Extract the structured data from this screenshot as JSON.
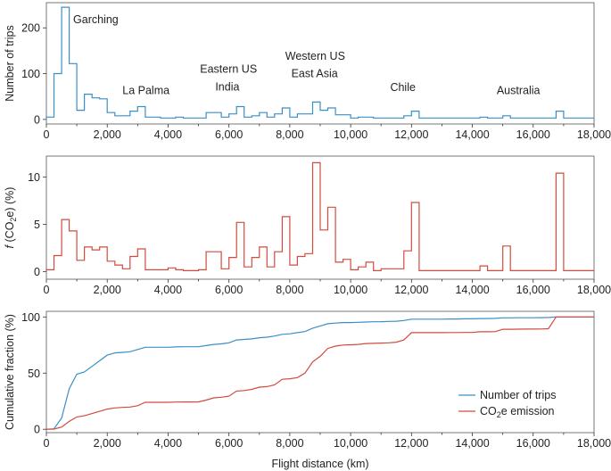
{
  "chart_data": [
    {
      "type": "line",
      "step": true,
      "ylabel": "Number of trips",
      "xlim": [
        0,
        18000
      ],
      "ylim": [
        -10,
        255
      ],
      "yticks": [
        0,
        100,
        200
      ],
      "xticks": [
        "0",
        "2,000",
        "4,000",
        "6,000",
        "8,000",
        "10,000",
        "12,000",
        "14,000",
        "16,000",
        "18,000"
      ],
      "color": "#3b8fc7",
      "annotations": [
        {
          "text": "Garching",
          "x": 880,
          "y": 210
        },
        {
          "text": "La Palma",
          "x": 2500,
          "y": 55
        },
        {
          "text": "Eastern US",
          "x": 5050,
          "y": 102
        },
        {
          "text": "India",
          "x": 5550,
          "y": 63
        },
        {
          "text": "Western US",
          "x": 7850,
          "y": 130
        },
        {
          "text": "East Asia",
          "x": 8050,
          "y": 92
        },
        {
          "text": "Chile",
          "x": 11300,
          "y": 62
        },
        {
          "text": "Australia",
          "x": 14800,
          "y": 55
        }
      ],
      "edges": [
        0,
        250,
        500,
        750,
        1000,
        1250,
        1500,
        1750,
        2000,
        2250,
        2500,
        2750,
        3000,
        3250,
        3500,
        3750,
        4000,
        4250,
        4500,
        4750,
        5000,
        5250,
        5500,
        5750,
        6000,
        6250,
        6500,
        6750,
        7000,
        7250,
        7500,
        7750,
        8000,
        8250,
        8500,
        8750,
        9000,
        9250,
        9500,
        9750,
        10000,
        10250,
        10500,
        10750,
        11000,
        11250,
        11500,
        11750,
        12000,
        12250,
        12500,
        12750,
        13000,
        13250,
        13500,
        13750,
        14000,
        14250,
        14500,
        14750,
        15000,
        15250,
        15500,
        15750,
        16000,
        16250,
        16500,
        16750,
        17000,
        17250,
        17500,
        17750,
        18000
      ],
      "values": [
        5,
        100,
        245,
        122,
        20,
        55,
        47,
        45,
        15,
        8,
        8,
        18,
        28,
        5,
        5,
        3,
        3,
        5,
        3,
        3,
        3,
        15,
        15,
        5,
        12,
        28,
        5,
        8,
        15,
        5,
        12,
        25,
        5,
        12,
        12,
        38,
        20,
        25,
        10,
        10,
        3,
        5,
        5,
        3,
        3,
        3,
        3,
        8,
        18,
        3,
        3,
        3,
        3,
        3,
        3,
        3,
        3,
        5,
        3,
        3,
        8,
        3,
        3,
        3,
        3,
        3,
        3,
        18,
        3,
        3,
        3,
        3
      ]
    },
    {
      "type": "line",
      "step": true,
      "ylabel_prefix": "f",
      "ylabel_main": " (CO",
      "ylabel_sub": "2",
      "ylabel_suffix": "e) (%)",
      "xlim": [
        0,
        18000
      ],
      "ylim": [
        -0.8,
        12.2
      ],
      "yticks": [
        0,
        5,
        10
      ],
      "xticks": [
        "0",
        "2,000",
        "4,000",
        "6,000",
        "8,000",
        "10,000",
        "12,000",
        "14,000",
        "16,000",
        "18,000"
      ],
      "color": "#d24b3e",
      "edges": [
        0,
        250,
        500,
        750,
        1000,
        1250,
        1500,
        1750,
        2000,
        2250,
        2500,
        2750,
        3000,
        3250,
        3500,
        3750,
        4000,
        4250,
        4500,
        4750,
        5000,
        5250,
        5500,
        5750,
        6000,
        6250,
        6500,
        6750,
        7000,
        7250,
        7500,
        7750,
        8000,
        8250,
        8500,
        8750,
        9000,
        9250,
        9500,
        9750,
        10000,
        10250,
        10500,
        10750,
        11000,
        11250,
        11500,
        11750,
        12000,
        12250,
        12500,
        12750,
        13000,
        13250,
        13500,
        13750,
        14000,
        14250,
        14500,
        14750,
        15000,
        15250,
        15500,
        15750,
        16000,
        16250,
        16500,
        16750,
        17000,
        17250,
        17500,
        17750,
        18000
      ],
      "values": [
        0.2,
        1.7,
        5.5,
        4.3,
        1.2,
        2.6,
        2.3,
        2.6,
        1.1,
        0.7,
        0.3,
        1.6,
        2.4,
        0.2,
        0.2,
        0.2,
        0.4,
        0.2,
        0.1,
        0.1,
        0.2,
        2.1,
        2.1,
        0.3,
        1.5,
        5.2,
        0.5,
        1.5,
        2.6,
        0.5,
        2.1,
        5.8,
        0.7,
        1.6,
        1.9,
        11.5,
        4.4,
        6.8,
        1.0,
        1.3,
        0.2,
        0.5,
        1.0,
        0.1,
        0.3,
        0.3,
        0.3,
        2.2,
        7.3,
        0.1,
        0.1,
        0.1,
        0.1,
        0.1,
        0.1,
        0.1,
        0.1,
        0.6,
        0.1,
        0.1,
        2.7,
        0.1,
        0.1,
        0.1,
        0.1,
        0.1,
        0.1,
        10.4,
        0.1,
        0.1,
        0.1,
        0.1
      ]
    },
    {
      "type": "line",
      "ylabel": "Cumulative fraction (%)",
      "xlabel": "Flight distance (km)",
      "xlim": [
        0,
        18000
      ],
      "ylim": [
        -3,
        105
      ],
      "yticks": [
        0,
        50,
        100
      ],
      "xticks": [
        "0",
        "2,000",
        "4,000",
        "6,000",
        "8,000",
        "10,000",
        "12,000",
        "14,000",
        "16,000",
        "18,000"
      ],
      "legend_position": "bottom-right",
      "series": [
        {
          "name": "Number of trips",
          "color": "#3b8fc7",
          "x": [
            0,
            250,
            500,
            750,
            1000,
            1250,
            1500,
            1750,
            2000,
            2250,
            2500,
            2750,
            3000,
            3250,
            3500,
            3750,
            4000,
            4250,
            4500,
            4750,
            5000,
            5250,
            5500,
            5750,
            6000,
            6250,
            6500,
            6750,
            7000,
            7250,
            7500,
            7750,
            8000,
            8250,
            8500,
            8750,
            9000,
            9250,
            9500,
            9750,
            10000,
            10250,
            10500,
            10750,
            11000,
            11250,
            11500,
            11750,
            12000,
            12250,
            12500,
            12750,
            13000,
            13250,
            13500,
            13750,
            14000,
            14250,
            14500,
            14750,
            15000,
            15250,
            15500,
            15750,
            16000,
            16250,
            16500,
            16750,
            17000,
            17250,
            17500,
            17750,
            18000
          ],
          "values": [
            0,
            0.4,
            10,
            36,
            49,
            51,
            56,
            61,
            66,
            68,
            68.5,
            69,
            71,
            73,
            73,
            73,
            73,
            73.3,
            73.5,
            73.5,
            73.5,
            74.5,
            75.5,
            76,
            77,
            79.5,
            80,
            80.5,
            81.5,
            82,
            83,
            84.5,
            85,
            86,
            87,
            90,
            92,
            94,
            94.5,
            95,
            95,
            95.2,
            95.5,
            95.7,
            95.8,
            96,
            96.2,
            96.8,
            98,
            98,
            98,
            98,
            98,
            98.2,
            98.2,
            98.3,
            98.3,
            98.6,
            98.6,
            98.7,
            99.2,
            99.2,
            99.3,
            99.3,
            99.3,
            99.4,
            99.5,
            100,
            100,
            100,
            100,
            100,
            100
          ]
        },
        {
          "name": "CO2e emission",
          "label_main": "CO",
          "label_sub": "2",
          "label_suffix": "e emission",
          "color": "#d24b3e",
          "x": [
            0,
            250,
            500,
            750,
            1000,
            1250,
            1500,
            1750,
            2000,
            2250,
            2500,
            2750,
            3000,
            3250,
            3500,
            3750,
            4000,
            4250,
            4500,
            4750,
            5000,
            5250,
            5500,
            5750,
            6000,
            6250,
            6500,
            6750,
            7000,
            7250,
            7500,
            7750,
            8000,
            8250,
            8500,
            8750,
            9000,
            9250,
            9500,
            9750,
            10000,
            10250,
            10500,
            10750,
            11000,
            11250,
            11500,
            11750,
            12000,
            12250,
            12500,
            12750,
            13000,
            13250,
            13500,
            13750,
            14000,
            14250,
            14500,
            14750,
            15000,
            15250,
            15500,
            15750,
            16000,
            16250,
            16500,
            16750,
            17000,
            17250,
            17500,
            17750,
            18000
          ],
          "values": [
            0,
            0.2,
            2,
            7,
            11,
            12,
            14,
            16,
            18,
            19,
            19.5,
            19.8,
            21,
            24,
            24,
            24,
            24,
            24.2,
            24.3,
            24.3,
            24.4,
            26,
            28,
            28.5,
            29.5,
            34,
            34.5,
            35.5,
            37.5,
            38,
            39.5,
            44.5,
            45,
            46,
            50,
            60,
            65,
            72,
            74,
            75,
            75.2,
            75.5,
            76.3,
            76.5,
            76.7,
            77,
            77.5,
            79.5,
            86,
            86,
            86,
            86,
            86,
            86.1,
            86.1,
            86.2,
            86.2,
            86.8,
            86.8,
            86.9,
            89,
            89,
            89.1,
            89.2,
            89.2,
            89.3,
            89.5,
            100,
            100,
            100,
            100,
            100,
            100
          ]
        }
      ]
    }
  ]
}
